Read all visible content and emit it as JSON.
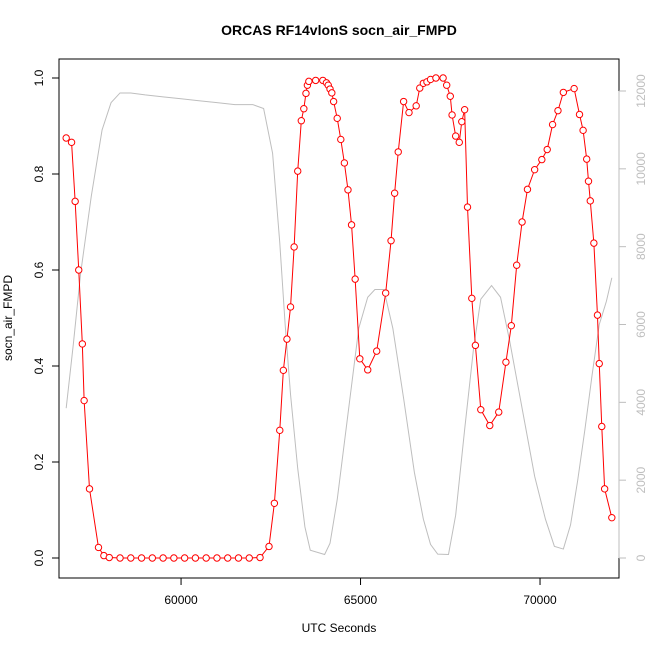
{
  "chart_data": {
    "type": "line",
    "title": "ORCAS RF14vlonS socn_air_FMPD",
    "xlabel": "UTC Seconds",
    "ylabel": "socn_air_FMPD",
    "xlim": [
      56600,
      72200
    ],
    "ylim": [
      0,
      1.0
    ],
    "y2lim": [
      0,
      12000
    ],
    "x_ticks": [
      60000,
      65000,
      70000
    ],
    "y_ticks": [
      0.0,
      0.2,
      0.4,
      0.6,
      0.8,
      1.0
    ],
    "y2_ticks": [
      0,
      2000,
      4000,
      6000,
      8000,
      10000,
      12000
    ],
    "x_tick_labels": [
      "60000",
      "65000",
      "70000"
    ],
    "y_tick_labels": [
      "0.0",
      "0.2",
      "0.4",
      "0.6",
      "0.8",
      "1.0"
    ],
    "y2_tick_labels": [
      "0",
      "2000",
      "4000",
      "6000",
      "8000",
      "10000",
      "12000"
    ],
    "colors": {
      "primary": "#ff0000",
      "secondary": "#bebebe",
      "axis": "#000000"
    },
    "series": [
      {
        "axis": "left",
        "style": "line-with-open-circles",
        "color": "#ff0000",
        "points": [
          [
            56800,
            0.875
          ],
          [
            56950,
            0.866
          ],
          [
            57050,
            0.743
          ],
          [
            57150,
            0.6
          ],
          [
            57250,
            0.446
          ],
          [
            57300,
            0.328
          ],
          [
            57450,
            0.144
          ],
          [
            57700,
            0.022
          ],
          [
            57850,
            0.005
          ],
          [
            58000,
            0.001
          ],
          [
            58300,
            0.0
          ],
          [
            58600,
            0.0
          ],
          [
            58900,
            0.0
          ],
          [
            59200,
            0.0
          ],
          [
            59500,
            0.0
          ],
          [
            59800,
            0.0
          ],
          [
            60100,
            0.0
          ],
          [
            60400,
            0.0
          ],
          [
            60700,
            0.0
          ],
          [
            61000,
            0.0
          ],
          [
            61300,
            0.0
          ],
          [
            61600,
            0.0
          ],
          [
            61900,
            0.0
          ],
          [
            62200,
            0.001
          ],
          [
            62450,
            0.024
          ],
          [
            62600,
            0.114
          ],
          [
            62750,
            0.266
          ],
          [
            62850,
            0.391
          ],
          [
            62950,
            0.456
          ],
          [
            63050,
            0.523
          ],
          [
            63150,
            0.648
          ],
          [
            63250,
            0.806
          ],
          [
            63350,
            0.911
          ],
          [
            63420,
            0.936
          ],
          [
            63480,
            0.968
          ],
          [
            63520,
            0.985
          ],
          [
            63560,
            0.993
          ],
          [
            63750,
            0.995
          ],
          [
            63950,
            0.995
          ],
          [
            64050,
            0.99
          ],
          [
            64100,
            0.985
          ],
          [
            64150,
            0.977
          ],
          [
            64200,
            0.969
          ],
          [
            64250,
            0.951
          ],
          [
            64350,
            0.916
          ],
          [
            64450,
            0.872
          ],
          [
            64550,
            0.823
          ],
          [
            64650,
            0.767
          ],
          [
            64750,
            0.694
          ],
          [
            64850,
            0.581
          ],
          [
            64980,
            0.415
          ],
          [
            65200,
            0.392
          ],
          [
            65450,
            0.431
          ],
          [
            65700,
            0.552
          ],
          [
            65850,
            0.661
          ],
          [
            65950,
            0.76
          ],
          [
            66050,
            0.846
          ],
          [
            66200,
            0.951
          ],
          [
            66350,
            0.928
          ],
          [
            66550,
            0.942
          ],
          [
            66650,
            0.979
          ],
          [
            66750,
            0.989
          ],
          [
            66850,
            0.992
          ],
          [
            66950,
            0.997
          ],
          [
            67100,
            1.0
          ],
          [
            67300,
            1.0
          ],
          [
            67400,
            0.985
          ],
          [
            67500,
            0.962
          ],
          [
            67550,
            0.923
          ],
          [
            67650,
            0.879
          ],
          [
            67750,
            0.866
          ],
          [
            67820,
            0.909
          ],
          [
            67900,
            0.934
          ],
          [
            67980,
            0.731
          ],
          [
            68100,
            0.541
          ],
          [
            68200,
            0.443
          ],
          [
            68350,
            0.309
          ],
          [
            68600,
            0.276
          ],
          [
            68850,
            0.304
          ],
          [
            69050,
            0.408
          ],
          [
            69200,
            0.484
          ],
          [
            69350,
            0.61
          ],
          [
            69500,
            0.7
          ],
          [
            69650,
            0.768
          ],
          [
            69850,
            0.809
          ],
          [
            70050,
            0.83
          ],
          [
            70200,
            0.851
          ],
          [
            70350,
            0.903
          ],
          [
            70500,
            0.932
          ],
          [
            70650,
            0.97
          ],
          [
            70950,
            0.978
          ],
          [
            71100,
            0.924
          ],
          [
            71200,
            0.891
          ],
          [
            71300,
            0.831
          ],
          [
            71350,
            0.785
          ],
          [
            71400,
            0.744
          ],
          [
            71500,
            0.656
          ],
          [
            71600,
            0.506
          ],
          [
            71650,
            0.405
          ],
          [
            71720,
            0.274
          ],
          [
            71800,
            0.144
          ],
          [
            72000,
            0.084
          ]
        ]
      },
      {
        "axis": "right",
        "style": "line",
        "color": "#bebebe",
        "points": [
          [
            56800,
            3850
          ],
          [
            57000,
            5500
          ],
          [
            57200,
            7300
          ],
          [
            57500,
            9300
          ],
          [
            57800,
            11000
          ],
          [
            58050,
            11700
          ],
          [
            58300,
            11950
          ],
          [
            58600,
            11950
          ],
          [
            59000,
            11900
          ],
          [
            59500,
            11850
          ],
          [
            60000,
            11800
          ],
          [
            60500,
            11750
          ],
          [
            61000,
            11700
          ],
          [
            61500,
            11650
          ],
          [
            62000,
            11650
          ],
          [
            62300,
            11550
          ],
          [
            62550,
            10400
          ],
          [
            62750,
            8100
          ],
          [
            62900,
            6000
          ],
          [
            63050,
            4200
          ],
          [
            63250,
            2300
          ],
          [
            63450,
            800
          ],
          [
            63600,
            200
          ],
          [
            64000,
            90
          ],
          [
            64150,
            380
          ],
          [
            64350,
            1500
          ],
          [
            64650,
            3700
          ],
          [
            64950,
            5900
          ],
          [
            65200,
            6700
          ],
          [
            65400,
            6900
          ],
          [
            65650,
            6900
          ],
          [
            65900,
            5900
          ],
          [
            66200,
            4100
          ],
          [
            66500,
            2200
          ],
          [
            66750,
            1000
          ],
          [
            66950,
            350
          ],
          [
            67150,
            100
          ],
          [
            67450,
            90
          ],
          [
            67650,
            1100
          ],
          [
            67900,
            3300
          ],
          [
            68150,
            5400
          ],
          [
            68350,
            6650
          ],
          [
            68650,
            7000
          ],
          [
            68900,
            6700
          ],
          [
            69150,
            5600
          ],
          [
            69550,
            3600
          ],
          [
            69850,
            2100
          ],
          [
            70150,
            1000
          ],
          [
            70400,
            300
          ],
          [
            70650,
            230
          ],
          [
            70850,
            850
          ],
          [
            71050,
            2000
          ],
          [
            71250,
            3300
          ],
          [
            71450,
            4700
          ],
          [
            71650,
            6000
          ],
          [
            71850,
            6600
          ],
          [
            72000,
            7200
          ]
        ]
      }
    ]
  }
}
